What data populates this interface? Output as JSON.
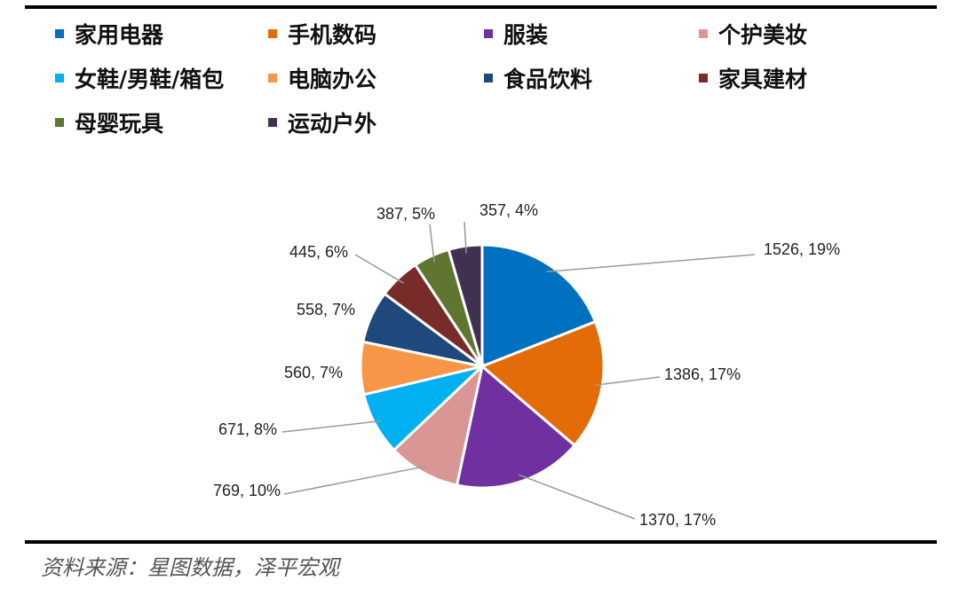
{
  "chart_data": {
    "type": "pie",
    "title": "",
    "legend_position": "top",
    "categories": [
      "家用电器",
      "手机数码",
      "服装",
      "个护美妆",
      "女鞋/男鞋/箱包",
      "电脑办公",
      "食品饮料",
      "家具建材",
      "母婴玩具",
      "运动户外"
    ],
    "values": [
      1526,
      1386,
      1370,
      769,
      671,
      560,
      558,
      445,
      387,
      357
    ],
    "data_labels": [
      "1526, 19%",
      "1386, 17%",
      "1370, 17%",
      "769, 10%",
      "671, 8%",
      "560, 7%",
      "558, 7%",
      "445, 6%",
      "387, 5%",
      "357, 4%"
    ],
    "colors": [
      "#0070c0",
      "#e36c09",
      "#7030a0",
      "#d99694",
      "#00b0f0",
      "#f79646",
      "#1f497d",
      "#772c2a",
      "#5f7530",
      "#403151"
    ]
  },
  "source": "资料来源：星图数据，泽平宏观"
}
